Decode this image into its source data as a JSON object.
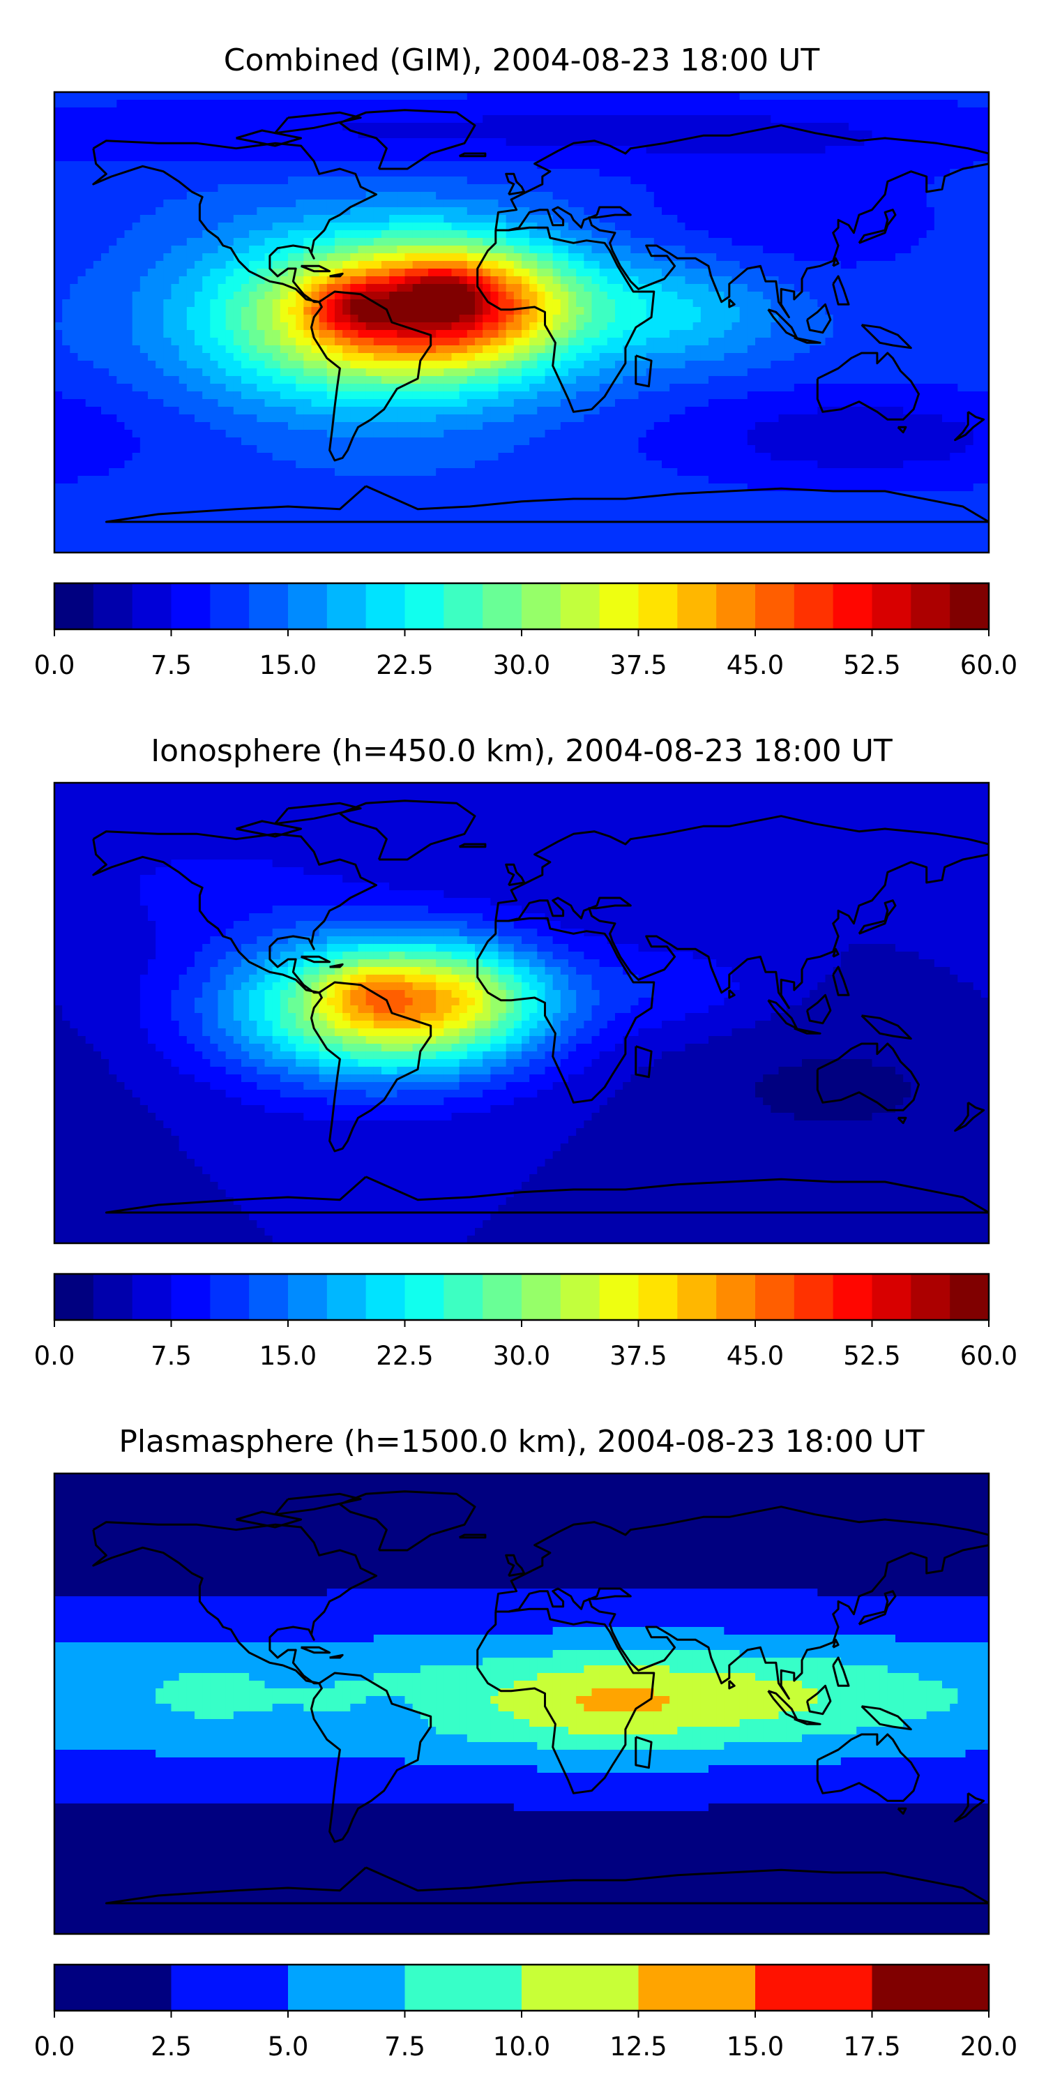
{
  "panels": [
    {
      "title": "Combined (GIM), 2004-08-23 18:00 UT",
      "colorbar": {
        "vmin": 0,
        "vmax": 60,
        "levels": 24,
        "ticks": [
          "0.0",
          "7.5",
          "15.0",
          "22.5",
          "30.0",
          "37.5",
          "45.0",
          "52.5",
          "60.0"
        ]
      },
      "field": {
        "base": 12,
        "blobs": [
          {
            "lon": -55,
            "lat": 2,
            "amp": 30,
            "slon": 45,
            "slat": 22
          },
          {
            "lon": -20,
            "lat": 8,
            "amp": 22,
            "slon": 30,
            "slat": 16
          },
          {
            "lon": -65,
            "lat": 6,
            "amp": 10,
            "slon": 12,
            "slat": 8
          },
          {
            "lon": -30,
            "lat": 12,
            "amp": 8,
            "slon": 10,
            "slat": 6
          },
          {
            "lon": 60,
            "lat": 5,
            "amp": 8,
            "slon": 30,
            "slat": 15
          },
          {
            "lon": 130,
            "lat": -45,
            "amp": -6,
            "slon": 60,
            "slat": 15
          },
          {
            "lon": 0,
            "lat": 75,
            "amp": -5,
            "slon": 180,
            "slat": 10
          },
          {
            "lon": 100,
            "lat": 40,
            "amp": -4,
            "slon": 50,
            "slat": 20
          }
        ]
      }
    },
    {
      "title": "Ionosphere  (h=450.0 km), 2004-08-23 18:00 UT",
      "colorbar": {
        "vmin": 0,
        "vmax": 60,
        "levels": 24,
        "ticks": [
          "0.0",
          "7.5",
          "15.0",
          "22.5",
          "30.0",
          "37.5",
          "45.0",
          "52.5",
          "60.0"
        ]
      },
      "field": {
        "base": 5,
        "blobs": [
          {
            "lon": -55,
            "lat": 2,
            "amp": 30,
            "slon": 42,
            "slat": 20
          },
          {
            "lon": -25,
            "lat": 6,
            "amp": 12,
            "slon": 28,
            "slat": 14
          },
          {
            "lon": -60,
            "lat": 8,
            "amp": 6,
            "slon": 12,
            "slat": 8
          },
          {
            "lon": 60,
            "lat": 10,
            "amp": 4,
            "slon": 25,
            "slat": 12
          },
          {
            "lon": 120,
            "lat": -30,
            "amp": -3,
            "slon": 50,
            "slat": 20
          },
          {
            "lon": -120,
            "lat": 50,
            "amp": 3,
            "slon": 40,
            "slat": 15
          }
        ]
      }
    },
    {
      "title": "Plasmasphere (h=1500.0 km), 2004-08-23 18:00 UT",
      "colorbar": {
        "vmin": 0,
        "vmax": 20,
        "levels": 8,
        "ticks": [
          "0.0",
          "2.5",
          "5.0",
          "7.5",
          "10.0",
          "12.5",
          "15.0",
          "17.5",
          "20.0"
        ]
      },
      "field": {
        "base": 1.5,
        "blobs": [
          {
            "lon": 0,
            "lat": 2,
            "amp": 6,
            "slon": 400,
            "slat": 22
          },
          {
            "lon": 40,
            "lat": 0,
            "amp": 4,
            "slon": 50,
            "slat": 15
          },
          {
            "lon": 35,
            "lat": 2,
            "amp": 1.5,
            "slon": 20,
            "slat": 10
          },
          {
            "lon": 110,
            "lat": 5,
            "amp": 1.5,
            "slon": 35,
            "slat": 12
          },
          {
            "lon": -120,
            "lat": 5,
            "amp": 1.5,
            "slon": 12,
            "slat": 7
          },
          {
            "lon": -50,
            "lat": -5,
            "amp": -2.5,
            "slon": 8,
            "slat": 5
          }
        ]
      }
    }
  ]
}
